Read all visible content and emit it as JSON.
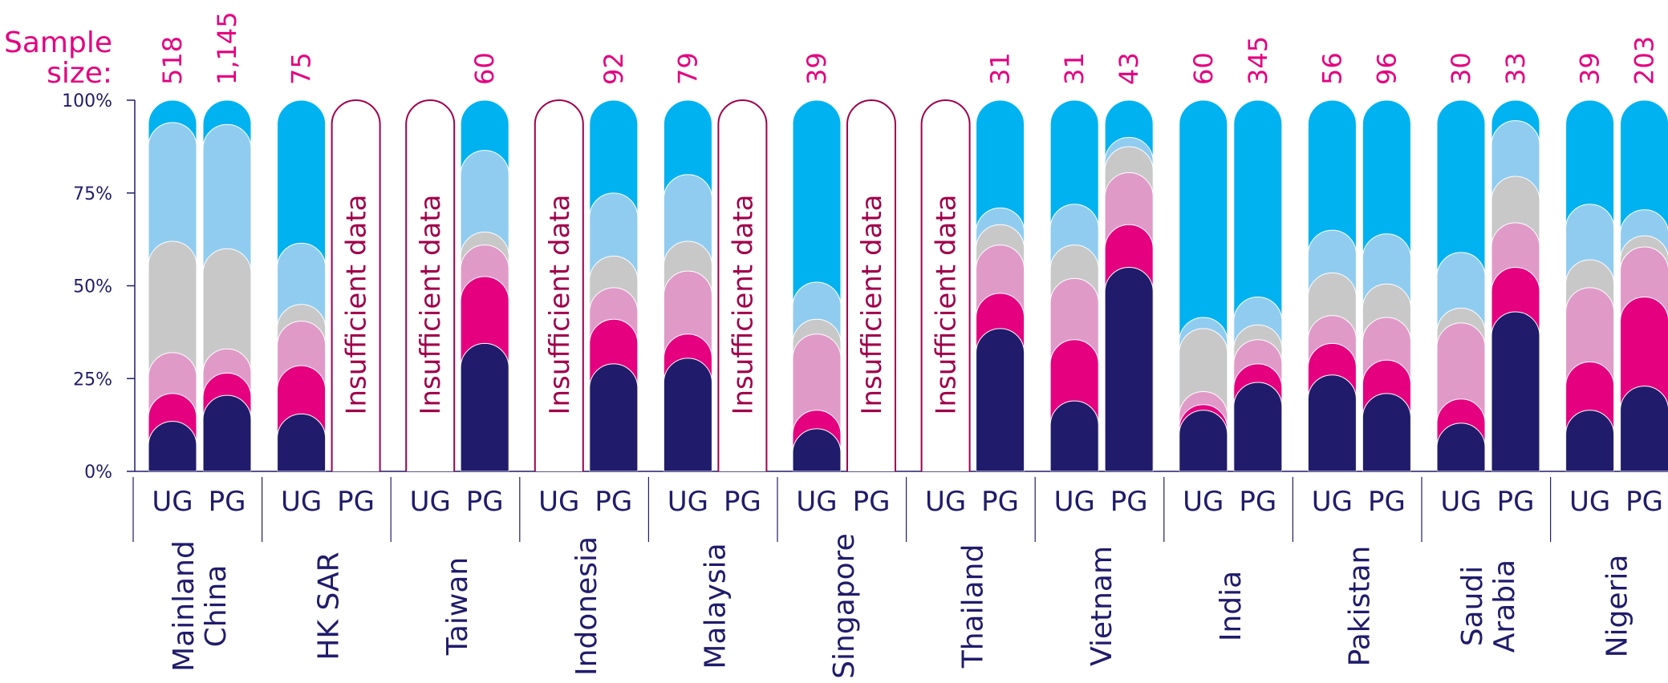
{
  "sample_size_label": [
    "Sample",
    "size:"
  ],
  "insufficient_label": "Insufficient data",
  "colors": {
    "segments": [
      "#201c6b",
      "#e4007f",
      "#e09ac8",
      "#c8c8c8",
      "#90ccf0",
      "#00b2ef"
    ],
    "axis": "#201c6b",
    "insufficient": "#a1004a",
    "sample": "#e4007f"
  },
  "chart_data": {
    "type": "bar",
    "stacked": true,
    "ylim": [
      0,
      100
    ],
    "yticks": [
      "0%",
      "25%",
      "50%",
      "75%",
      "100%"
    ],
    "grid": false,
    "groups": [
      {
        "country": [
          "Mainland",
          "China"
        ],
        "bars": [
          {
            "level": "UG",
            "sample": "518",
            "values": [
              7,
              7.5,
              11,
              30,
              32,
              12.5
            ]
          },
          {
            "level": "PG",
            "sample": "1,145",
            "values": [
              14,
              6,
              6.5,
              27,
              33.5,
              13
            ]
          }
        ]
      },
      {
        "country": [
          "HK SAR"
        ],
        "bars": [
          {
            "level": "UG",
            "sample": "75",
            "values": [
              9,
              13,
              12,
              4.5,
              16.5,
              45
            ]
          },
          {
            "level": "PG",
            "sample": "",
            "values": null
          }
        ]
      },
      {
        "country": [
          "Taiwan"
        ],
        "bars": [
          {
            "level": "UG",
            "sample": "",
            "values": null
          },
          {
            "level": "PG",
            "sample": "60",
            "values": [
              28,
              18,
              8.5,
              3.5,
              22,
              20
            ]
          }
        ]
      },
      {
        "country": [
          "Indonesia"
        ],
        "bars": [
          {
            "level": "UG",
            "sample": "",
            "values": null
          },
          {
            "level": "PG",
            "sample": "92",
            "values": [
              22.5,
              12,
              8.5,
              8.5,
              17,
              31.5
            ]
          }
        ]
      },
      {
        "country": [
          "Malaysia"
        ],
        "bars": [
          {
            "level": "UG",
            "sample": "79",
            "values": [
              24,
              6.5,
              17,
              8,
              18,
              26.5
            ]
          },
          {
            "level": "PG",
            "sample": "",
            "values": null
          }
        ]
      },
      {
        "country": [
          "Singapore"
        ],
        "bars": [
          {
            "level": "UG",
            "sample": "39",
            "values": [
              5,
              5,
              20.5,
              4,
              10,
              55.5
            ]
          },
          {
            "level": "PG",
            "sample": "",
            "values": null
          }
        ]
      },
      {
        "country": [
          "Thailand"
        ],
        "bars": [
          {
            "level": "UG",
            "sample": "",
            "values": null
          },
          {
            "level": "PG",
            "sample": "31",
            "values": [
              32,
              9.5,
              13,
              5.5,
              4.5,
              35.5
            ]
          }
        ]
      },
      {
        "country": [
          "Vietnam"
        ],
        "bars": [
          {
            "level": "UG",
            "sample": "31",
            "values": [
              12.5,
              16.5,
              16.5,
              9,
              11,
              34.5
            ]
          },
          {
            "level": "PG",
            "sample": "43",
            "values": [
              48.5,
              11.5,
              14,
              7,
              2.5,
              16.5
            ]
          }
        ]
      },
      {
        "country": [
          "India"
        ],
        "bars": [
          {
            "level": "UG",
            "sample": "60",
            "values": [
              10,
              1.5,
              3.5,
              17,
              3,
              65
            ]
          },
          {
            "level": "PG",
            "sample": "345",
            "values": [
              17.5,
              5,
              6.5,
              4,
              7.5,
              59.5
            ]
          }
        ]
      },
      {
        "country": [
          "Pakistan"
        ],
        "bars": [
          {
            "level": "UG",
            "sample": "56",
            "values": [
              19.5,
              8.5,
              7.5,
              11.5,
              11.5,
              41.5
            ]
          },
          {
            "level": "PG",
            "sample": "96",
            "values": [
              14.5,
              9,
              11.5,
              9,
              13.5,
              42.5
            ]
          }
        ]
      },
      {
        "country": [
          "Saudi",
          "Arabia"
        ],
        "bars": [
          {
            "level": "UG",
            "sample": "30",
            "values": [
              6.5,
              6.5,
              20.5,
              4,
              15,
              47.5
            ]
          },
          {
            "level": "PG",
            "sample": "33",
            "values": [
              36.5,
              12,
              12,
              12.5,
              15,
              12
            ]
          }
        ]
      },
      {
        "country": [
          "Nigeria"
        ],
        "bars": [
          {
            "level": "UG",
            "sample": "39",
            "values": [
              10,
              13,
              20,
              7.5,
              15,
              34.5
            ]
          },
          {
            "level": "PG",
            "sample": "203",
            "values": [
              16.5,
              24,
              13.5,
              3,
              7,
              36
            ]
          }
        ]
      }
    ]
  }
}
